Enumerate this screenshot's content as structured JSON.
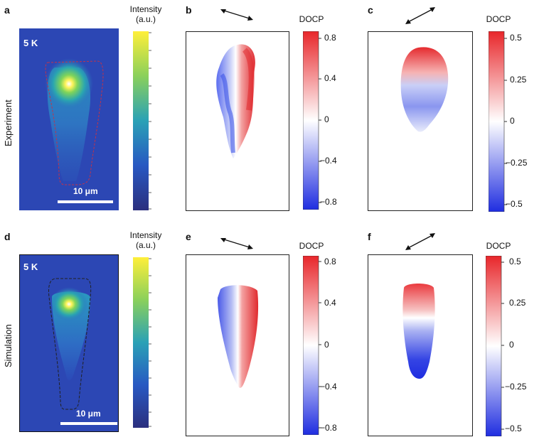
{
  "row_labels": {
    "experiment": "Experiment",
    "simulation": "Simulation"
  },
  "panels": {
    "a": {
      "letter": "a",
      "temp": "5 K",
      "scale": "10 μm"
    },
    "b": {
      "letter": "b"
    },
    "c": {
      "letter": "c"
    },
    "d": {
      "letter": "d",
      "temp": "5 K",
      "scale": "10 μm"
    },
    "e": {
      "letter": "e"
    },
    "f": {
      "letter": "f"
    }
  },
  "colorbars": {
    "intensity_title": "Intensity",
    "intensity_unit": "(a.u.)",
    "docp_title": "DOCP",
    "docp_08_ticks": [
      "0.8",
      "0.4",
      "0",
      "−0.4",
      "−0.8"
    ],
    "docp_05_ticks": [
      "0.5",
      "0.25",
      "0",
      "−0.25",
      "−0.5"
    ]
  },
  "colors": {
    "map_background": "#2c47b4",
    "red": "#e8262a",
    "blue": "#1f2de0",
    "yellow": "#fff35a"
  }
}
